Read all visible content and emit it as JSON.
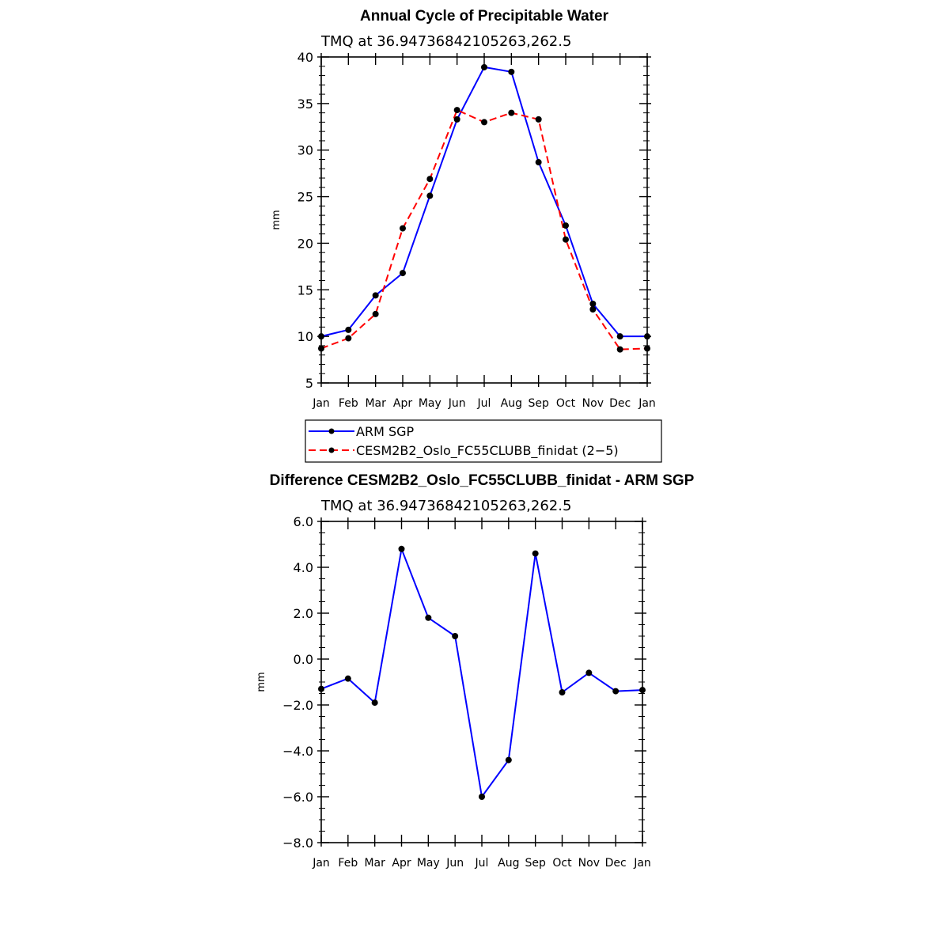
{
  "chart_data": [
    {
      "type": "line",
      "title": "Annual Cycle of Precipitable Water",
      "subtitle": "TMQ  at  36.94736842105263,262.5",
      "xlabel": "",
      "ylabel": "mm",
      "categories": [
        "Jan",
        "Feb",
        "Mar",
        "Apr",
        "May",
        "Jun",
        "Jul",
        "Aug",
        "Sep",
        "Oct",
        "Nov",
        "Dec",
        "Jan"
      ],
      "ylim": [
        5,
        40
      ],
      "yticks": [
        "5",
        "10",
        "15",
        "20",
        "25",
        "30",
        "35",
        "40"
      ],
      "ytick_values": [
        5,
        10,
        15,
        20,
        25,
        30,
        35,
        40
      ],
      "series": [
        {
          "name": "ARM SGP",
          "color": "#0000ff",
          "dash": "solid",
          "values": [
            10.0,
            10.7,
            14.4,
            16.8,
            25.1,
            33.3,
            38.9,
            38.4,
            28.7,
            21.9,
            13.5,
            10.0,
            10.0
          ]
        },
        {
          "name": "CESM2B2_Oslo_FC55CLUBB_finidat (2−5)",
          "color": "#ff0000",
          "dash": "dashed",
          "values": [
            8.7,
            9.8,
            12.4,
            21.6,
            26.9,
            34.3,
            33.0,
            34.0,
            33.3,
            20.4,
            12.9,
            8.6,
            8.7
          ]
        }
      ],
      "legend": {
        "placement": "below",
        "entries": [
          "ARM SGP",
          "CESM2B2_Oslo_FC55CLUBB_finidat (2−5)"
        ]
      },
      "grid": false
    },
    {
      "type": "line",
      "title": "Difference CESM2B2_Oslo_FC55CLUBB_finidat - ARM SGP",
      "subtitle": "TMQ  at  36.94736842105263,262.5",
      "xlabel": "",
      "ylabel": "mm",
      "categories": [
        "Jan",
        "Feb",
        "Mar",
        "Apr",
        "May",
        "Jun",
        "Jul",
        "Aug",
        "Sep",
        "Oct",
        "Nov",
        "Dec",
        "Jan"
      ],
      "ylim": [
        -8,
        6
      ],
      "yticks": [
        "−8.0",
        "−6.0",
        "−4.0",
        "−2.0",
        "0.0",
        "2.0",
        "4.0",
        "6.0"
      ],
      "ytick_values": [
        -8,
        -6,
        -4,
        -2,
        0,
        2,
        4,
        6
      ],
      "series": [
        {
          "name": "Difference",
          "color": "#0000ff",
          "dash": "solid",
          "values": [
            -1.3,
            -0.85,
            -1.9,
            4.8,
            1.8,
            1.0,
            -6.0,
            -4.4,
            4.6,
            -1.45,
            -0.6,
            -1.4,
            -1.35
          ]
        }
      ],
      "grid": false
    }
  ]
}
